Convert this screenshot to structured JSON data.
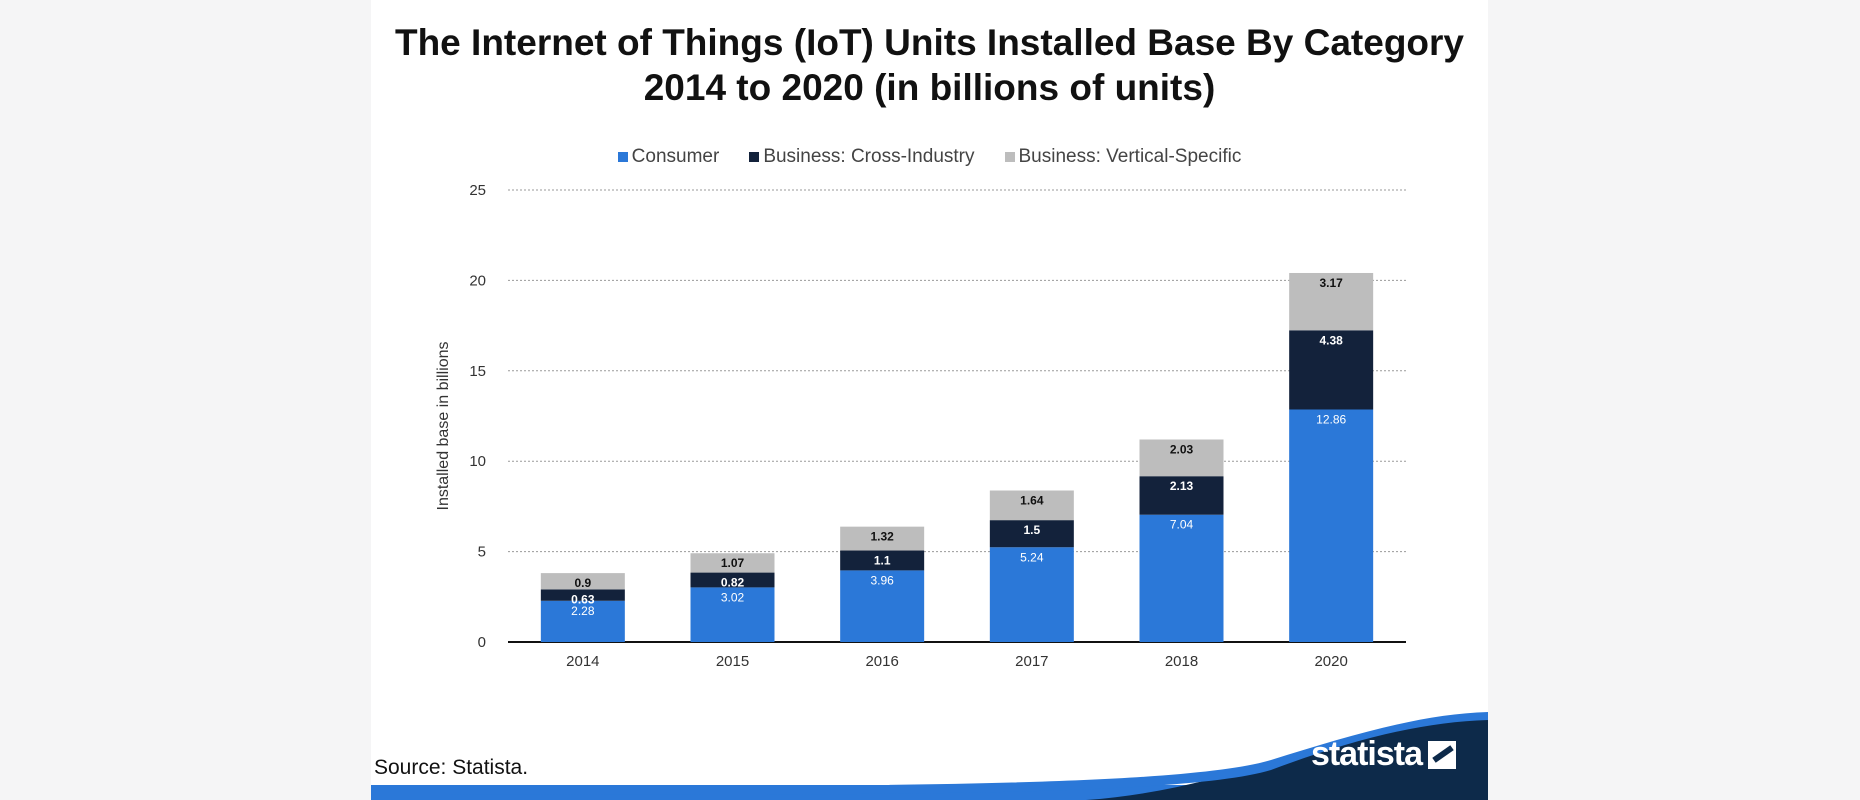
{
  "chart_data": {
    "type": "bar",
    "stacked": true,
    "title_lines": [
      "The Internet of Things (IoT) Units Installed Base By Category",
      "2014 to 2020 (in billions of units)"
    ],
    "ylabel": "Installed base in billions",
    "xlabel": "",
    "ylim": [
      0,
      25
    ],
    "yticks": [
      0,
      5,
      10,
      15,
      20,
      25
    ],
    "grid": true,
    "legend_position": "top",
    "categories": [
      "2014",
      "2015",
      "2016",
      "2017",
      "2018",
      "2020"
    ],
    "series": [
      {
        "name": "Consumer",
        "color": "#2b78d8",
        "values": [
          2.28,
          3.02,
          3.96,
          5.24,
          7.04,
          12.86
        ],
        "labels": [
          "2.28",
          "3.02",
          "3.96",
          "5.24",
          "7.04",
          "12.86"
        ]
      },
      {
        "name": "Business: Cross-Industry",
        "color": "#13223b",
        "values": [
          0.63,
          0.82,
          1.1,
          1.5,
          2.13,
          4.38
        ],
        "labels": [
          "0.63",
          "0.82",
          "1.1",
          "1.5",
          "2.13",
          "4.38"
        ]
      },
      {
        "name": "Business: Vertical-Specific",
        "color": "#bdbdbd",
        "values": [
          0.9,
          1.07,
          1.32,
          1.64,
          2.03,
          3.17
        ],
        "labels": [
          "0.9",
          "1.07",
          "1.32",
          "1.64",
          "2.03",
          "3.17"
        ]
      }
    ]
  },
  "source_text": "Source: Statista.",
  "brand": {
    "name": "statista",
    "accent": "#2b78d8",
    "dark": "#0d2a4a"
  }
}
